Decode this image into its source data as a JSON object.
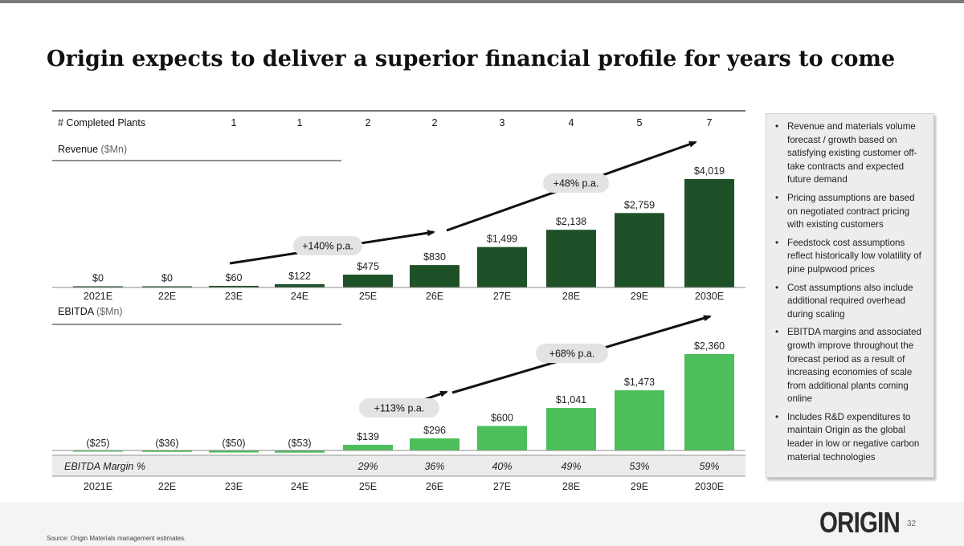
{
  "page": {
    "title": "Origin expects to deliver a superior financial profile for years to come",
    "source": "Source: Origin Materials management estimates.",
    "logo": "ORIGIN",
    "page_number": "32"
  },
  "bullets": [
    "Revenue and materials volume forecast / growth based on satisfying existing customer off-take contracts and expected future demand",
    "Pricing assumptions are based on negotiated contract pricing with existing customers",
    "Feedstock cost assumptions reflect historically low volatility of pine pulpwood prices",
    "Cost assumptions also include additional required overhead during scaling",
    "EBITDA margins and associated growth improve throughout the forecast period as a result of increasing economies of scale from additional plants coming online",
    "Includes R&D expenditures to maintain Origin as the global leader in low or negative carbon material technologies"
  ],
  "chart_data": {
    "type": "bar",
    "categories": [
      "2021E",
      "22E",
      "23E",
      "24E",
      "25E",
      "26E",
      "27E",
      "28E",
      "29E",
      "2030E"
    ],
    "plants": {
      "label": "# Completed Plants",
      "values": [
        "",
        "",
        "1",
        "1",
        "2",
        "2",
        "3",
        "4",
        "5",
        "7"
      ]
    },
    "revenue": {
      "title": "Revenue",
      "unit": "($Mn)",
      "values": [
        0,
        0,
        60,
        122,
        475,
        830,
        1499,
        2138,
        2759,
        4019
      ],
      "labels": [
        "$0",
        "$0",
        "$60",
        "$122",
        "$475",
        "$830",
        "$1,499",
        "$2,138",
        "$2,759",
        "$4,019"
      ],
      "color": "#1e5128",
      "growth": [
        {
          "label": "+140% p.a."
        },
        {
          "label": "+48% p.a."
        }
      ]
    },
    "ebitda": {
      "title": "EBITDA",
      "unit": "($Mn)",
      "values": [
        -25,
        -36,
        -50,
        -53,
        139,
        296,
        600,
        1041,
        1473,
        2360
      ],
      "labels": [
        "($25)",
        "($36)",
        "($50)",
        "($53)",
        "$139",
        "$296",
        "$600",
        "$1,041",
        "$1,473",
        "$2,360"
      ],
      "color": "#4cbf5a",
      "growth": [
        {
          "label": "+113% p.a."
        },
        {
          "label": "+68% p.a."
        }
      ]
    },
    "margin": {
      "label": "EBITDA Margin %",
      "values": [
        "",
        "",
        "",
        "",
        "29%",
        "36%",
        "40%",
        "49%",
        "53%",
        "59%"
      ]
    }
  }
}
